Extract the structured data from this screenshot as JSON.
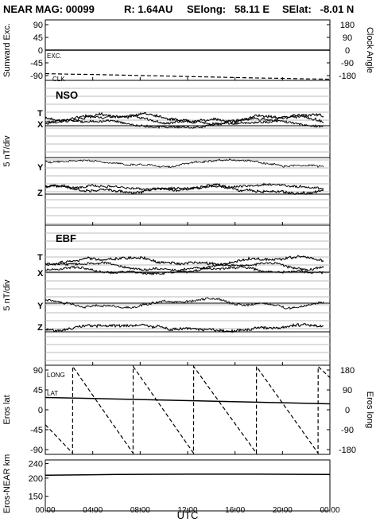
{
  "header": {
    "title": "NEAR MAG: 00099",
    "r": "R: 1.64AU",
    "selong": "SElong:   58.11 E",
    "selat": "SElat:   -8.01 N"
  },
  "colors": {
    "line": "#000000",
    "grid": "#bbbbbb",
    "background": "#ffffff"
  },
  "chart_data": {
    "type": "line",
    "xlabel": "UTC",
    "x_ticks": [
      "00:00",
      "04:00",
      "08:00",
      "12:00",
      "16:00",
      "20:00",
      "00:00"
    ],
    "x_range_hours": [
      0,
      24
    ],
    "panels": [
      {
        "id": "sunward",
        "ylabel_left": "Sunward Exc.",
        "ylabel_right": "Clock Angle",
        "left_ticks": [
          "90",
          "45",
          "0",
          "-45",
          "-90"
        ],
        "right_ticks": [
          "180",
          "90",
          "0",
          "-90",
          "-180"
        ],
        "ylim": [
          -90,
          90
        ],
        "annotations": [
          "EXC.",
          "CLK"
        ],
        "series": [
          {
            "label": "EXC.",
            "style": "solid",
            "x": [
              0,
              24
            ],
            "y": [
              0,
              0
            ]
          },
          {
            "label": "CLK",
            "style": "dashed",
            "y_axis": "right",
            "x": [
              0,
              2,
              4,
              6,
              8,
              10,
              12,
              14,
              16,
              18,
              20,
              22,
              24
            ],
            "y": [
              -140,
              -143,
              -145,
              -148,
              -151,
              -154,
              -157,
              -160,
              -163,
              -166,
              -168,
              -171,
              -173
            ]
          }
        ]
      },
      {
        "id": "nso",
        "label": "NSO",
        "ylabel": "5 nT/div",
        "components": [
          "T",
          "X",
          "Y",
          "Z"
        ]
      },
      {
        "id": "ebf",
        "label": "EBF",
        "ylabel": "5 nT/div",
        "components": [
          "T",
          "X",
          "Y",
          "Z"
        ]
      },
      {
        "id": "eros",
        "ylabel_left": "Eros lat",
        "ylabel_right": "Eros long",
        "left_ticks": [
          "90",
          "45",
          "0",
          "-45",
          "-90"
        ],
        "right_ticks": [
          "180",
          "90",
          "0",
          "-90",
          "-180"
        ],
        "ylim": [
          -90,
          90
        ],
        "annotations": [
          "LONG",
          "LAT"
        ],
        "series": [
          {
            "label": "LAT",
            "style": "solid",
            "x": [
              0,
              24
            ],
            "y": [
              25,
              12
            ]
          },
          {
            "label": "LONG",
            "style": "dashed",
            "y_axis": "right",
            "x": [
              0,
              2.3,
              2.31,
              7.4,
              7.41,
              12.5,
              12.51,
              17.8,
              17.81,
              23.0,
              23.01,
              24.0
            ],
            "y": [
              -60,
              -175,
              175,
              -175,
              175,
              -175,
              175,
              -175,
              175,
              -175,
              175,
              130
            ]
          }
        ]
      },
      {
        "id": "range",
        "ylabel": "Eros-NEAR km",
        "left_ticks": [
          "240",
          "200",
          "150"
        ],
        "tick_values": [
          240,
          200,
          150
        ],
        "ylim": [
          110,
          250
        ],
        "series": [
          {
            "style": "solid",
            "x": [
              0,
              6,
              12,
              18,
              24
            ],
            "y": [
              208,
              210,
              211,
              211,
              210
            ]
          }
        ]
      }
    ]
  }
}
